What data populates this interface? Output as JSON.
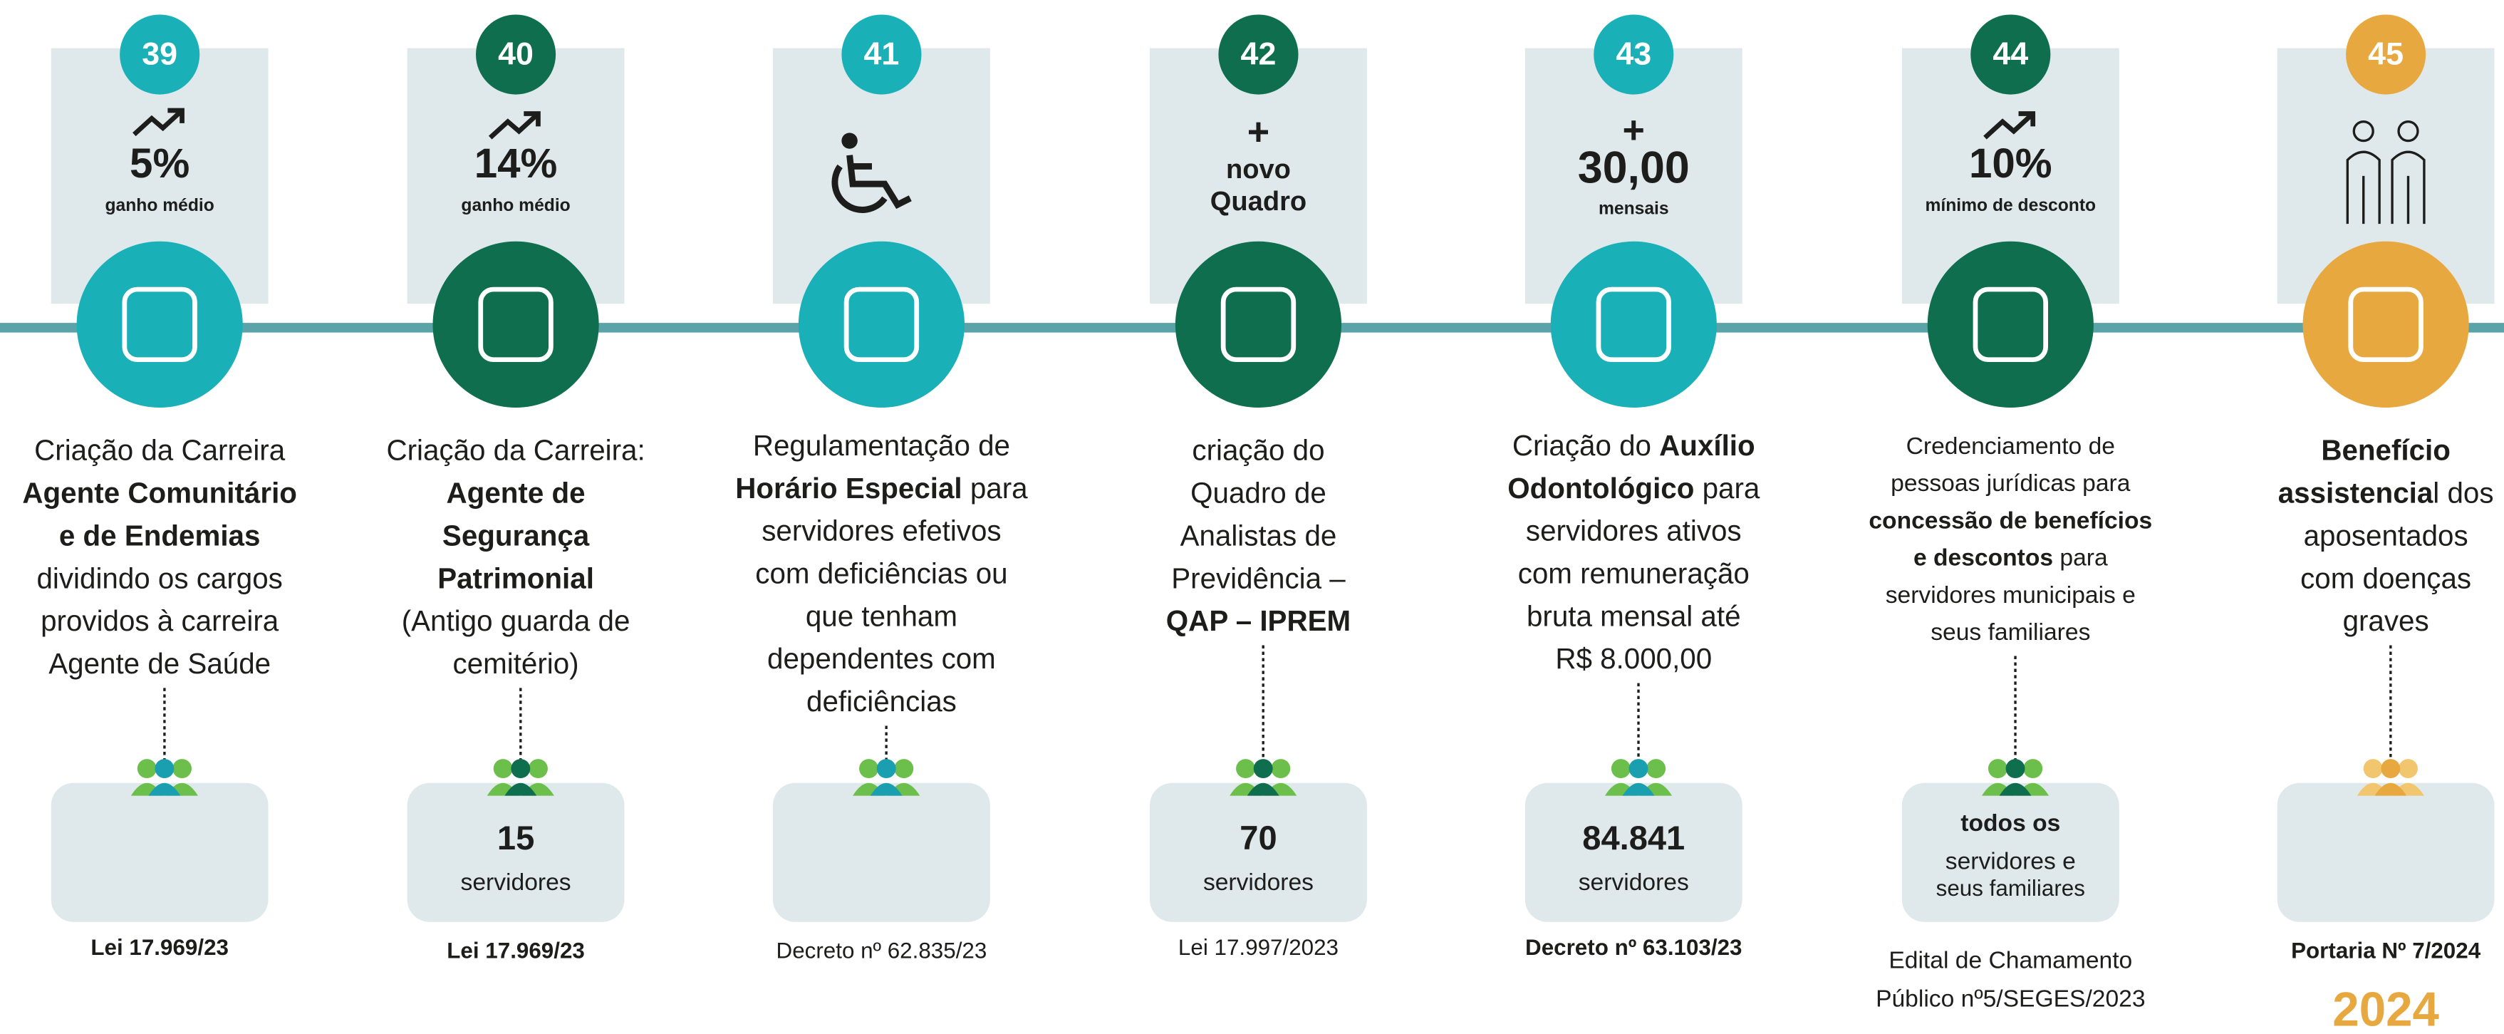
{
  "items": [
    {
      "number": "39",
      "color": "#1ab0b8",
      "header": [
        "5%",
        "ganho médio"
      ],
      "description": [
        [
          {
            "text": "Criação da Carreira",
            "bold": false
          }
        ],
        [
          {
            "text": "Agente Comunitário",
            "bold": true
          }
        ],
        [
          {
            "text": "e de Endemias",
            "bold": true
          }
        ],
        [
          {
            "text": "dividindo os cargos",
            "bold": false
          }
        ],
        [
          {
            "text": "providos à carreira",
            "bold": false
          }
        ],
        [
          {
            "text": "Agente de Saúde",
            "bold": false
          }
        ]
      ],
      "count": [],
      "source": [
        "Lei 17.969/23"
      ]
    },
    {
      "number": "40",
      "color": "#0e6e4e",
      "header": [
        "14%",
        "ganho médio"
      ],
      "description": [
        [
          {
            "text": "Criação da Carreira:",
            "bold": false
          }
        ],
        [
          {
            "text": "Agente de",
            "bold": true
          }
        ],
        [
          {
            "text": "Segurança",
            "bold": true
          }
        ],
        [
          {
            "text": "Patrimonial",
            "bold": true
          }
        ],
        [
          {
            "text": "(Antigo guarda de",
            "bold": false
          }
        ],
        [
          {
            "text": "cemitério)",
            "bold": false
          }
        ]
      ],
      "count": [
        "15",
        "servidores"
      ],
      "source": [
        "Lei 17.969/23"
      ]
    },
    {
      "number": "41",
      "color": "#1ab0b8",
      "header": [],
      "description": [
        [
          {
            "text": "Regulamentação de",
            "bold": false
          }
        ],
        [
          {
            "text": "Horário Especial",
            "bold": true
          },
          {
            "text": " para",
            "bold": false
          }
        ],
        [
          {
            "text": "servidores efetivos",
            "bold": false
          }
        ],
        [
          {
            "text": "com deficiências ou",
            "bold": false
          }
        ],
        [
          {
            "text": "que tenham",
            "bold": false
          }
        ],
        [
          {
            "text": "dependentes com",
            "bold": false
          }
        ],
        [
          {
            "text": "deficiências",
            "bold": false
          }
        ]
      ],
      "count": [],
      "source": [
        "Decreto nº 62.835/23"
      ]
    },
    {
      "number": "42",
      "color": "#0e6e4e",
      "header": [
        "+",
        "novo",
        "Quadro"
      ],
      "description": [
        [
          {
            "text": "criação do",
            "bold": false
          }
        ],
        [
          {
            "text": "Quadro de",
            "bold": false
          }
        ],
        [
          {
            "text": "Analistas de",
            "bold": false
          }
        ],
        [
          {
            "text": "Previdência –",
            "bold": false
          }
        ],
        [
          {
            "text": "QAP – IPREM",
            "bold": true
          }
        ]
      ],
      "count": [
        "70",
        "servidores"
      ],
      "source": [
        "Lei 17.997/2023"
      ]
    },
    {
      "number": "43",
      "color": "#1ab0b8",
      "header": [
        "+",
        "30,00",
        "mensais"
      ],
      "description": [
        [
          {
            "text": "Criação do ",
            "bold": false
          },
          {
            "text": "Auxílio",
            "bold": true
          }
        ],
        [
          {
            "text": "Odontológico",
            "bold": true
          },
          {
            "text": " para",
            "bold": false
          }
        ],
        [
          {
            "text": "servidores ativos",
            "bold": false
          }
        ],
        [
          {
            "text": "com remuneração",
            "bold": false
          }
        ],
        [
          {
            "text": "bruta mensal até",
            "bold": false
          }
        ],
        [
          {
            "text": "R$ 8.000,00",
            "bold": false
          }
        ]
      ],
      "count": [
        "84.841",
        "servidores"
      ],
      "source": [
        "Decreto nº 63.103/23"
      ]
    },
    {
      "number": "44",
      "color": "#0e6e4e",
      "header": [
        "10%",
        "mínimo de desconto"
      ],
      "description": [
        [
          {
            "text": "Credenciamento de",
            "bold": false
          }
        ],
        [
          {
            "text": "pessoas jurídicas para",
            "bold": false
          }
        ],
        [
          {
            "text": "concessão de benefícios",
            "bold": true
          }
        ],
        [
          {
            "text": "e descontos",
            "bold": true
          },
          {
            "text": " para",
            "bold": false
          }
        ],
        [
          {
            "text": "servidores municipais e",
            "bold": false
          }
        ],
        [
          {
            "text": "seus familiares",
            "bold": false
          }
        ]
      ],
      "count": [
        "todos os",
        "servidores e",
        "seus familiares"
      ],
      "source": [
        "Edital de Chamamento",
        "Público nº5/SEGES/2023"
      ]
    },
    {
      "number": "45",
      "color": "#e8a840",
      "header": [],
      "description": [
        [
          {
            "text": "Benefício",
            "bold": true
          }
        ],
        [
          {
            "text": "assistencia",
            "bold": true
          },
          {
            "text": "l dos",
            "bold": false
          }
        ],
        [
          {
            "text": "aposentados",
            "bold": false
          }
        ],
        [
          {
            "text": "com doenças",
            "bold": false
          }
        ],
        [
          {
            "text": "graves",
            "bold": false
          }
        ]
      ],
      "count": [],
      "source": [
        "Portaria Nº 7/2024"
      ]
    }
  ],
  "year": "2024"
}
